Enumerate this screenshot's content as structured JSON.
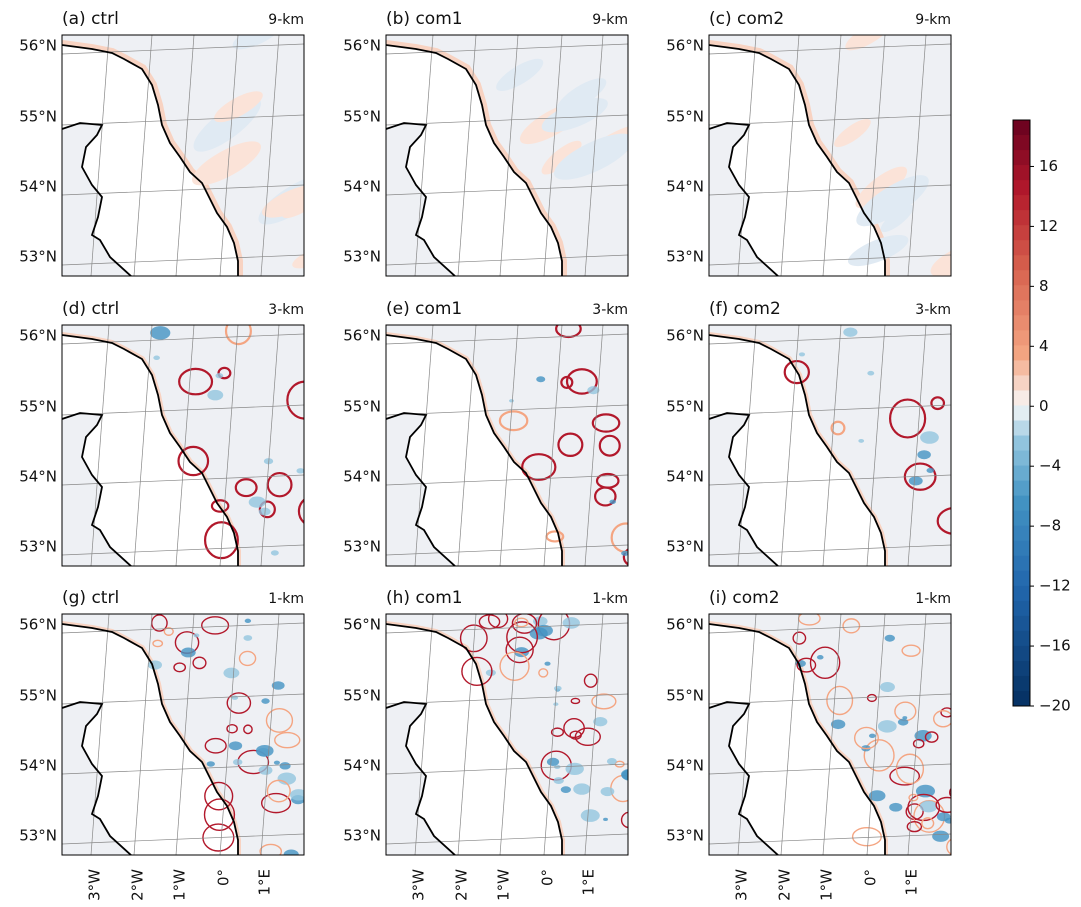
{
  "panels": [
    {
      "label": "(a) ctrl",
      "resolution": "9-km"
    },
    {
      "label": "(b) com1",
      "resolution": "9-km"
    },
    {
      "label": "(c) com2",
      "resolution": "9-km"
    },
    {
      "label": "(d) ctrl",
      "resolution": "3-km"
    },
    {
      "label": "(e) com1",
      "resolution": "3-km"
    },
    {
      "label": "(f) com2",
      "resolution": "3-km"
    },
    {
      "label": "(g) ctrl",
      "resolution": "1-km"
    },
    {
      "label": "(h) com1",
      "resolution": "1-km"
    },
    {
      "label": "(i) com2",
      "resolution": "1-km"
    }
  ],
  "lat_labels": [
    "56°N",
    "55°N",
    "54°N",
    "53°N"
  ],
  "lon_labels": [
    "3°W",
    "2°W",
    "1°W",
    "0°",
    "1°E"
  ],
  "colorbar": {
    "ylim": [
      -20,
      19.1
    ],
    "yticks": [
      {
        "value": -20,
        "label": "−20"
      },
      {
        "value": -16,
        "label": "−16"
      },
      {
        "value": -12,
        "label": "−12"
      },
      {
        "value": -8,
        "label": "−8"
      },
      {
        "value": -4,
        "label": "−4"
      },
      0,
      4,
      8,
      12,
      16
    ]
  }
}
